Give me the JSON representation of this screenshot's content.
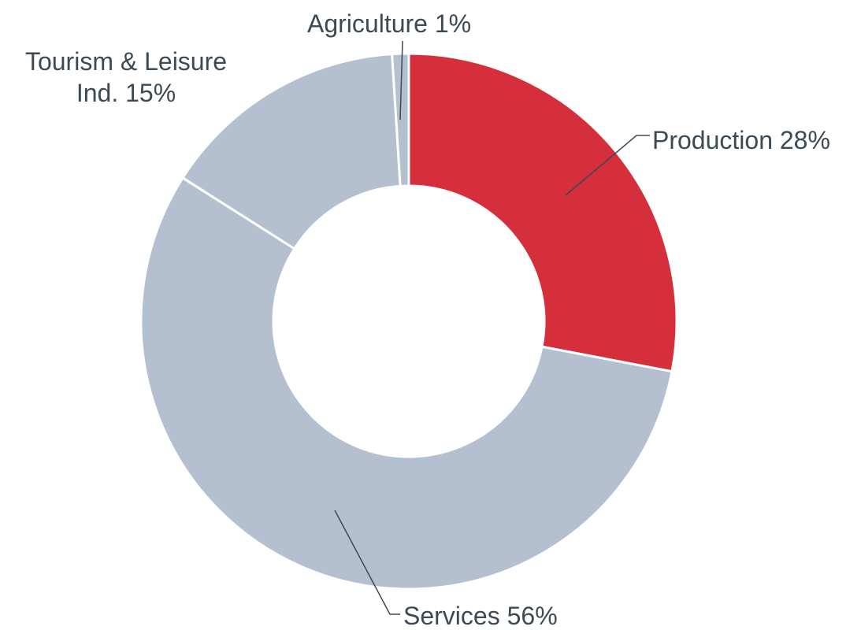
{
  "chart_data": {
    "type": "donut",
    "categories": [
      "Production",
      "Services",
      "Tourism & Leisure Ind.",
      "Agriculture"
    ],
    "values": [
      28,
      56,
      15,
      1
    ],
    "value_labels": [
      "28%",
      "56%",
      "15%",
      "1%"
    ],
    "colors": [
      "#d42f3a",
      "#b4bfd0",
      "#b4bfd0",
      "#b4bfd0"
    ]
  }
}
